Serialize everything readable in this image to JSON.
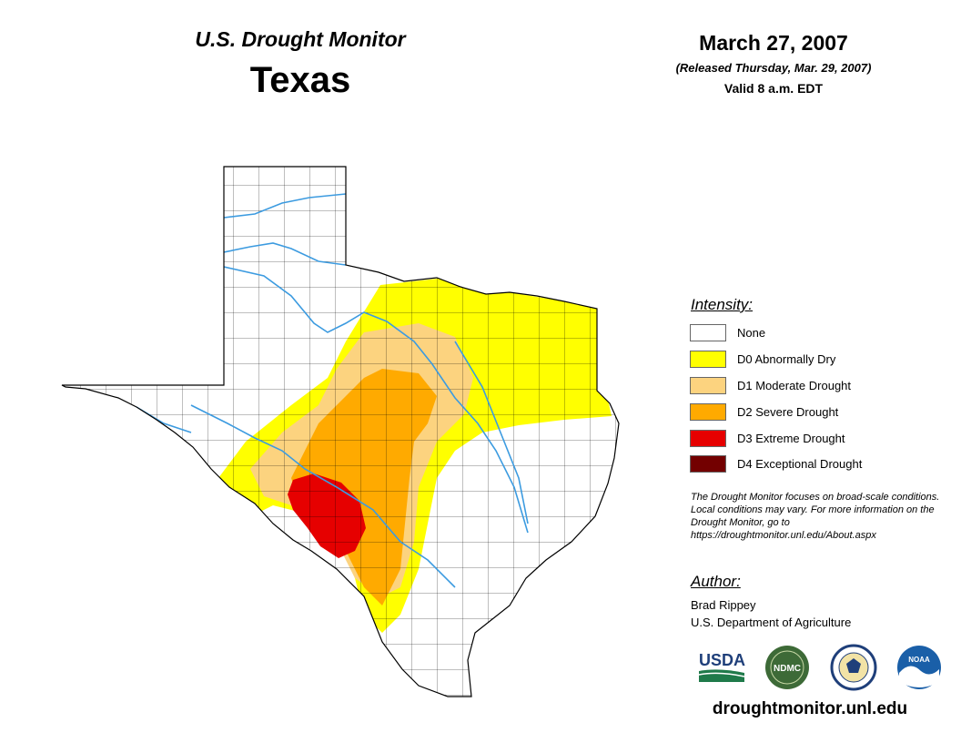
{
  "header": {
    "monitor_title": "U.S. Drought Monitor",
    "state": "Texas",
    "date": "March 27, 2007",
    "released": "(Released Thursday, Mar. 29, 2007)",
    "valid": "Valid 8 a.m. EDT"
  },
  "legend": {
    "heading": "Intensity:",
    "items": [
      {
        "label": "None",
        "color": "#ffffff"
      },
      {
        "label": "D0 Abnormally Dry",
        "color": "#ffff00"
      },
      {
        "label": "D1 Moderate Drought",
        "color": "#fcd37f"
      },
      {
        "label": "D2 Severe Drought",
        "color": "#ffaa00"
      },
      {
        "label": "D3 Extreme Drought",
        "color": "#e60000"
      },
      {
        "label": "D4 Exceptional Drought",
        "color": "#730000"
      }
    ]
  },
  "note": "The Drought Monitor focuses on broad-scale conditions. Local conditions may vary. For more information on the Drought Monitor, go to https://droughtmonitor.unl.edu/About.aspx",
  "author": {
    "heading": "Author:",
    "name": "Brad Rippey",
    "organization": "U.S. Department of Agriculture"
  },
  "logos": {
    "usda": "USDA",
    "ndmc": "NDMC",
    "doc": "commerce-seal-icon",
    "noaa": "NOAA"
  },
  "colors": {
    "river": "#3c9be0",
    "county_line": "#000000"
  },
  "website": "droughtmonitor.unl.edu"
}
